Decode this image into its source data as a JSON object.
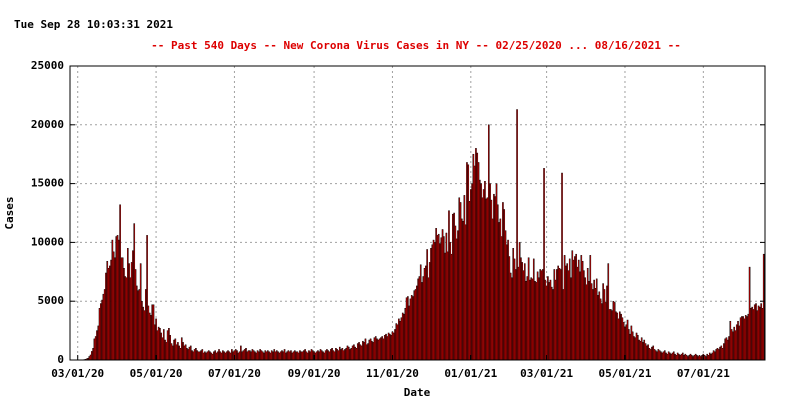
{
  "chart_data": {
    "type": "bar",
    "timestamp": "Tue Sep 28 10:03:31 2021",
    "title": "--  Past 540 Days  --  New Corona Virus Cases in NY  -- 02/25/2020 ... 08/16/2021  --",
    "xlabel": "Date",
    "ylabel": "Cases",
    "color": "#cc0000",
    "edge_color": "#000000",
    "grid": true,
    "xlim": [
      -1,
      540
    ],
    "ylim": [
      0,
      25000
    ],
    "yticks": [
      0,
      5000,
      10000,
      15000,
      20000,
      25000
    ],
    "xticks": [
      {
        "value": 5,
        "label": "03/01/20"
      },
      {
        "value": 66,
        "label": "05/01/20"
      },
      {
        "value": 127,
        "label": "07/01/20"
      },
      {
        "value": 189,
        "label": "09/01/20"
      },
      {
        "value": 250,
        "label": "11/01/20"
      },
      {
        "value": 311,
        "label": "01/01/21"
      },
      {
        "value": 370,
        "label": "03/01/21"
      },
      {
        "value": 431,
        "label": "05/01/21"
      },
      {
        "value": 492,
        "label": "07/01/21"
      }
    ],
    "values": [
      0,
      0,
      0,
      0,
      0,
      1,
      0,
      2,
      11,
      22,
      33,
      60,
      100,
      150,
      300,
      430,
      730,
      1000,
      1800,
      2000,
      2500,
      2900,
      4400,
      4800,
      5100,
      5600,
      6000,
      7400,
      8400,
      7800,
      8000,
      8500,
      10200,
      9200,
      8700,
      10500,
      10600,
      10200,
      13200,
      8700,
      8700,
      7800,
      7100,
      7000,
      9500,
      8200,
      7000,
      8300,
      9300,
      11600,
      7700,
      6300,
      5900,
      6000,
      8200,
      5000,
      4500,
      4200,
      6000,
      10600,
      4600,
      4000,
      3800,
      4700,
      4700,
      3000,
      3500,
      2500,
      2800,
      2700,
      2300,
      1900,
      2600,
      1700,
      1500,
      2500,
      2700,
      2100,
      1400,
      1200,
      1700,
      1800,
      1300,
      1500,
      1200,
      1000,
      1900,
      1500,
      1200,
      1300,
      1000,
      900,
      1100,
      1200,
      800,
      700,
      900,
      1000,
      800,
      700,
      700,
      800,
      900,
      600,
      700,
      600,
      700,
      800,
      700,
      600,
      500,
      700,
      800,
      600,
      700,
      900,
      700,
      600,
      800,
      700,
      600,
      700,
      800,
      700,
      600,
      900,
      700,
      800,
      900,
      800,
      600,
      700,
      1200,
      700,
      800,
      900,
      1000,
      700,
      800,
      800,
      700,
      900,
      800,
      700,
      600,
      800,
      700,
      900,
      800,
      700,
      600,
      800,
      700,
      800,
      700,
      600,
      800,
      700,
      900,
      700,
      800,
      700,
      600,
      700,
      800,
      700,
      900,
      600,
      700,
      800,
      700,
      800,
      600,
      700,
      800,
      700,
      700,
      600,
      800,
      700,
      700,
      800,
      900,
      700,
      600,
      800,
      700,
      900,
      800,
      700,
      600,
      700,
      800,
      700,
      900,
      800,
      700,
      600,
      800,
      900,
      800,
      700,
      900,
      1000,
      800,
      700,
      1000,
      900,
      800,
      1100,
      900,
      1000,
      800,
      900,
      1000,
      1200,
      1100,
      900,
      1000,
      1200,
      1300,
      1100,
      1000,
      1400,
      1500,
      1300,
      1200,
      1600,
      1500,
      1800,
      1300,
      1400,
      1700,
      1800,
      1600,
      1500,
      1900,
      2000,
      1800,
      1700,
      1800,
      1900,
      2000,
      1800,
      2100,
      2200,
      2000,
      2300,
      2200,
      2100,
      2400,
      2300,
      2600,
      3100,
      3000,
      3500,
      3300,
      3600,
      4000,
      3900,
      4400,
      5300,
      5400,
      4600,
      5200,
      5500,
      5400,
      5900,
      6000,
      6300,
      6900,
      7100,
      8100,
      6600,
      7100,
      7800,
      8000,
      9400,
      7000,
      8300,
      9500,
      9800,
      10200,
      10000,
      11200,
      10600,
      10700,
      9900,
      10400,
      11100,
      10500,
      9100,
      10800,
      9200,
      12700,
      10000,
      9000,
      12400,
      12500,
      11400,
      10300,
      11000,
      13800,
      13400,
      12000,
      11800,
      14000,
      11500,
      16800,
      16600,
      13500,
      14500,
      15000,
      17500,
      16500,
      18000,
      17600,
      16800,
      15300,
      15000,
      13800,
      14500,
      15200,
      13700,
      13800,
      20000,
      15000,
      13600,
      12000,
      14100,
      13900,
      15000,
      13200,
      11700,
      12000,
      10500,
      13400,
      12800,
      11000,
      9800,
      10200,
      8800,
      7400,
      7000,
      9500,
      8600,
      7700,
      21300,
      7900,
      10000,
      8700,
      8300,
      7600,
      8200,
      6700,
      7100,
      8700,
      6800,
      7000,
      6900,
      8600,
      6700,
      6600,
      7500,
      7000,
      7700,
      7600,
      7700,
      16300,
      6800,
      6300,
      7100,
      6600,
      6800,
      6200,
      6000,
      7700,
      6800,
      7700,
      8000,
      7800,
      7700,
      15900,
      6000,
      8900,
      8000,
      8200,
      7600,
      8600,
      7000,
      9300,
      8500,
      8800,
      9000,
      7900,
      8500,
      7500,
      8900,
      8400,
      7600,
      7000,
      6400,
      7800,
      6700,
      8900,
      6500,
      6000,
      6800,
      6100,
      6900,
      5500,
      5800,
      5200,
      4800,
      6500,
      6000,
      4900,
      6300,
      8200,
      4300,
      4300,
      4200,
      5000,
      4900,
      4100,
      4000,
      3500,
      4100,
      3900,
      3600,
      3200,
      2800,
      3000,
      3400,
      2600,
      2200,
      2900,
      2400,
      2000,
      1900,
      2300,
      2100,
      1700,
      1600,
      1900,
      1500,
      1700,
      1400,
      1200,
      1300,
      1000,
      900,
      1100,
      1200,
      900,
      800,
      700,
      900,
      800,
      700,
      600,
      700,
      800,
      600,
      500,
      700,
      600,
      500,
      600,
      700,
      500,
      400,
      600,
      500,
      400,
      500,
      600,
      400,
      500,
      400,
      300,
      400,
      500,
      400,
      300,
      400,
      500,
      400,
      300,
      400,
      300,
      400,
      500,
      400,
      300,
      500,
      400,
      600,
      500,
      600,
      800,
      700,
      900,
      1000,
      900,
      1100,
      1200,
      1000,
      1400,
      1800,
      1900,
      1700,
      2000,
      3300,
      2600,
      2400,
      2800,
      2500,
      3000,
      3300,
      2900,
      3600,
      3700,
      3700,
      3500,
      3800,
      3700,
      3900,
      7900,
      4400,
      4500,
      4300,
      4700,
      4800,
      4200,
      4600,
      4500,
      4800,
      4400,
      9000
    ]
  }
}
